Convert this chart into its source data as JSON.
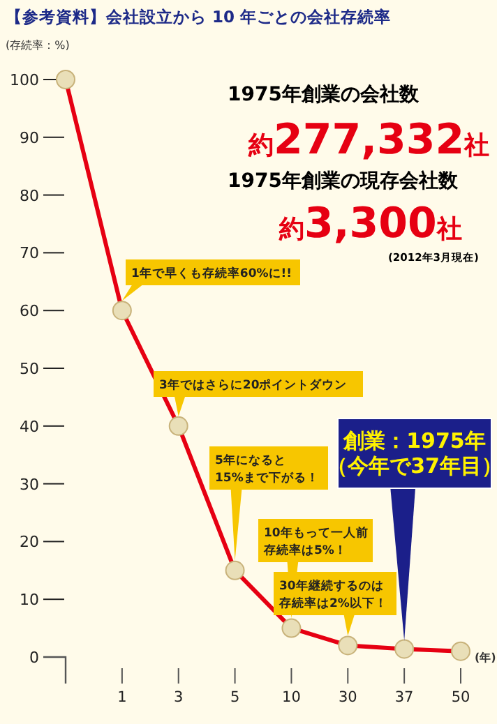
{
  "chart_data": {
    "type": "line",
    "title": "【参考資料】会社設立から 10 年ごとの会社存続率",
    "ylabel": "(存続率：%)",
    "categories": [
      null,
      "1",
      "3",
      "5",
      "10",
      "30",
      "37",
      "50"
    ],
    "series": [
      {
        "color": "#e60012",
        "values": [
          100,
          60,
          40,
          15,
          5,
          2,
          1.4,
          1
        ]
      }
    ],
    "ylim": [
      0,
      100
    ],
    "yticks": [
      0,
      10,
      20,
      30,
      40,
      50,
      60,
      70,
      80,
      90,
      100
    ],
    "grid": false,
    "marker": "circle",
    "line_style": "solid",
    "annotations": [
      {
        "text": "1年で早くも存続率60%に!!",
        "x": "1",
        "y": 60
      },
      {
        "text": "3年ではさらに20ポイントダウン",
        "x": "3",
        "y": 40
      },
      {
        "text": "5年になると15%まで下がる！",
        "x": "5",
        "y": 15
      },
      {
        "text": "10年もって一人前存続率は5%！",
        "x": "10",
        "y": 5
      },
      {
        "text": "30年継続するのは存続率は2%以下！",
        "x": "30",
        "y": 2
      },
      {
        "text": "創業：1975年（今年で37年目）",
        "x": "37",
        "y": 1.4
      },
      "1975年創業の会社数",
      "約277,332社",
      "1975年創業の現存会社数",
      "約3,300社",
      "(2012年3月現在)",
      "(年)"
    ]
  }
}
